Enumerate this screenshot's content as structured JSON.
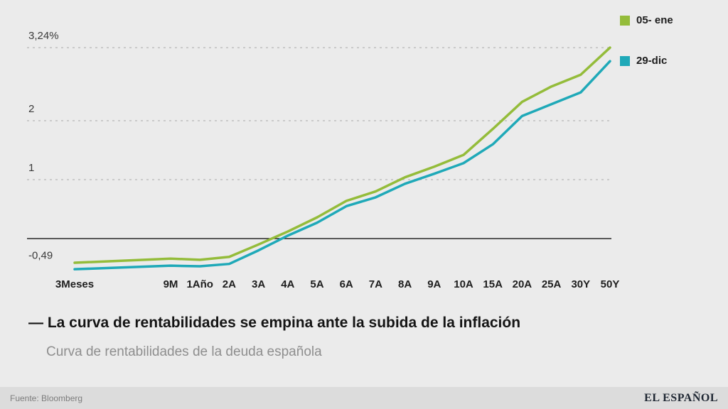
{
  "title": "— La curva de rentabilidades se empina ante la subida de la inflación",
  "subtitle": "Curva de rentabilidades de la deuda española",
  "footer": {
    "source": "Fuente: Bloomberg",
    "brand": "EL ESPAÑOL"
  },
  "colors": {
    "background": "#ebebeb",
    "footer_bg": "#dcdcdc",
    "grid": "#bfbfbf",
    "zero_line": "#000000",
    "series_green": "#94bc3a",
    "series_teal": "#1fa9b8"
  },
  "chart_data": {
    "type": "line",
    "title": "Curva de rentabilidades de la deuda española",
    "categories": [
      "3Meses",
      "9M",
      "1Año",
      "2A",
      "3A",
      "4A",
      "5A",
      "6A",
      "7A",
      "8A",
      "9A",
      "10A",
      "15A",
      "20A",
      "25A",
      "30Y",
      "50Y"
    ],
    "series": [
      {
        "name": "05- ene",
        "color": "#94bc3a",
        "values": [
          -0.41,
          -0.34,
          -0.36,
          -0.31,
          -0.1,
          0.12,
          0.36,
          0.64,
          0.8,
          1.04,
          1.22,
          1.42,
          1.86,
          2.32,
          2.58,
          2.78,
          3.24
        ]
      },
      {
        "name": "29-dic",
        "color": "#1fa9b8",
        "values": [
          -0.52,
          -0.46,
          -0.47,
          -0.43,
          -0.2,
          0.05,
          0.27,
          0.55,
          0.7,
          0.93,
          1.1,
          1.28,
          1.6,
          2.08,
          2.28,
          2.48,
          3.01
        ]
      }
    ],
    "yticks": [
      {
        "label": "3,24%",
        "value": 3.24,
        "grid": true
      },
      {
        "label": "2",
        "value": 2,
        "grid": true
      },
      {
        "label": "1",
        "value": 1,
        "grid": true
      },
      {
        "label": "-0,49",
        "value": -0.49,
        "grid": false
      }
    ],
    "zero_line": 0,
    "ylim": [
      -0.7,
      3.5
    ],
    "grid": "dashed-horizontal",
    "legend_position": "top-right"
  }
}
